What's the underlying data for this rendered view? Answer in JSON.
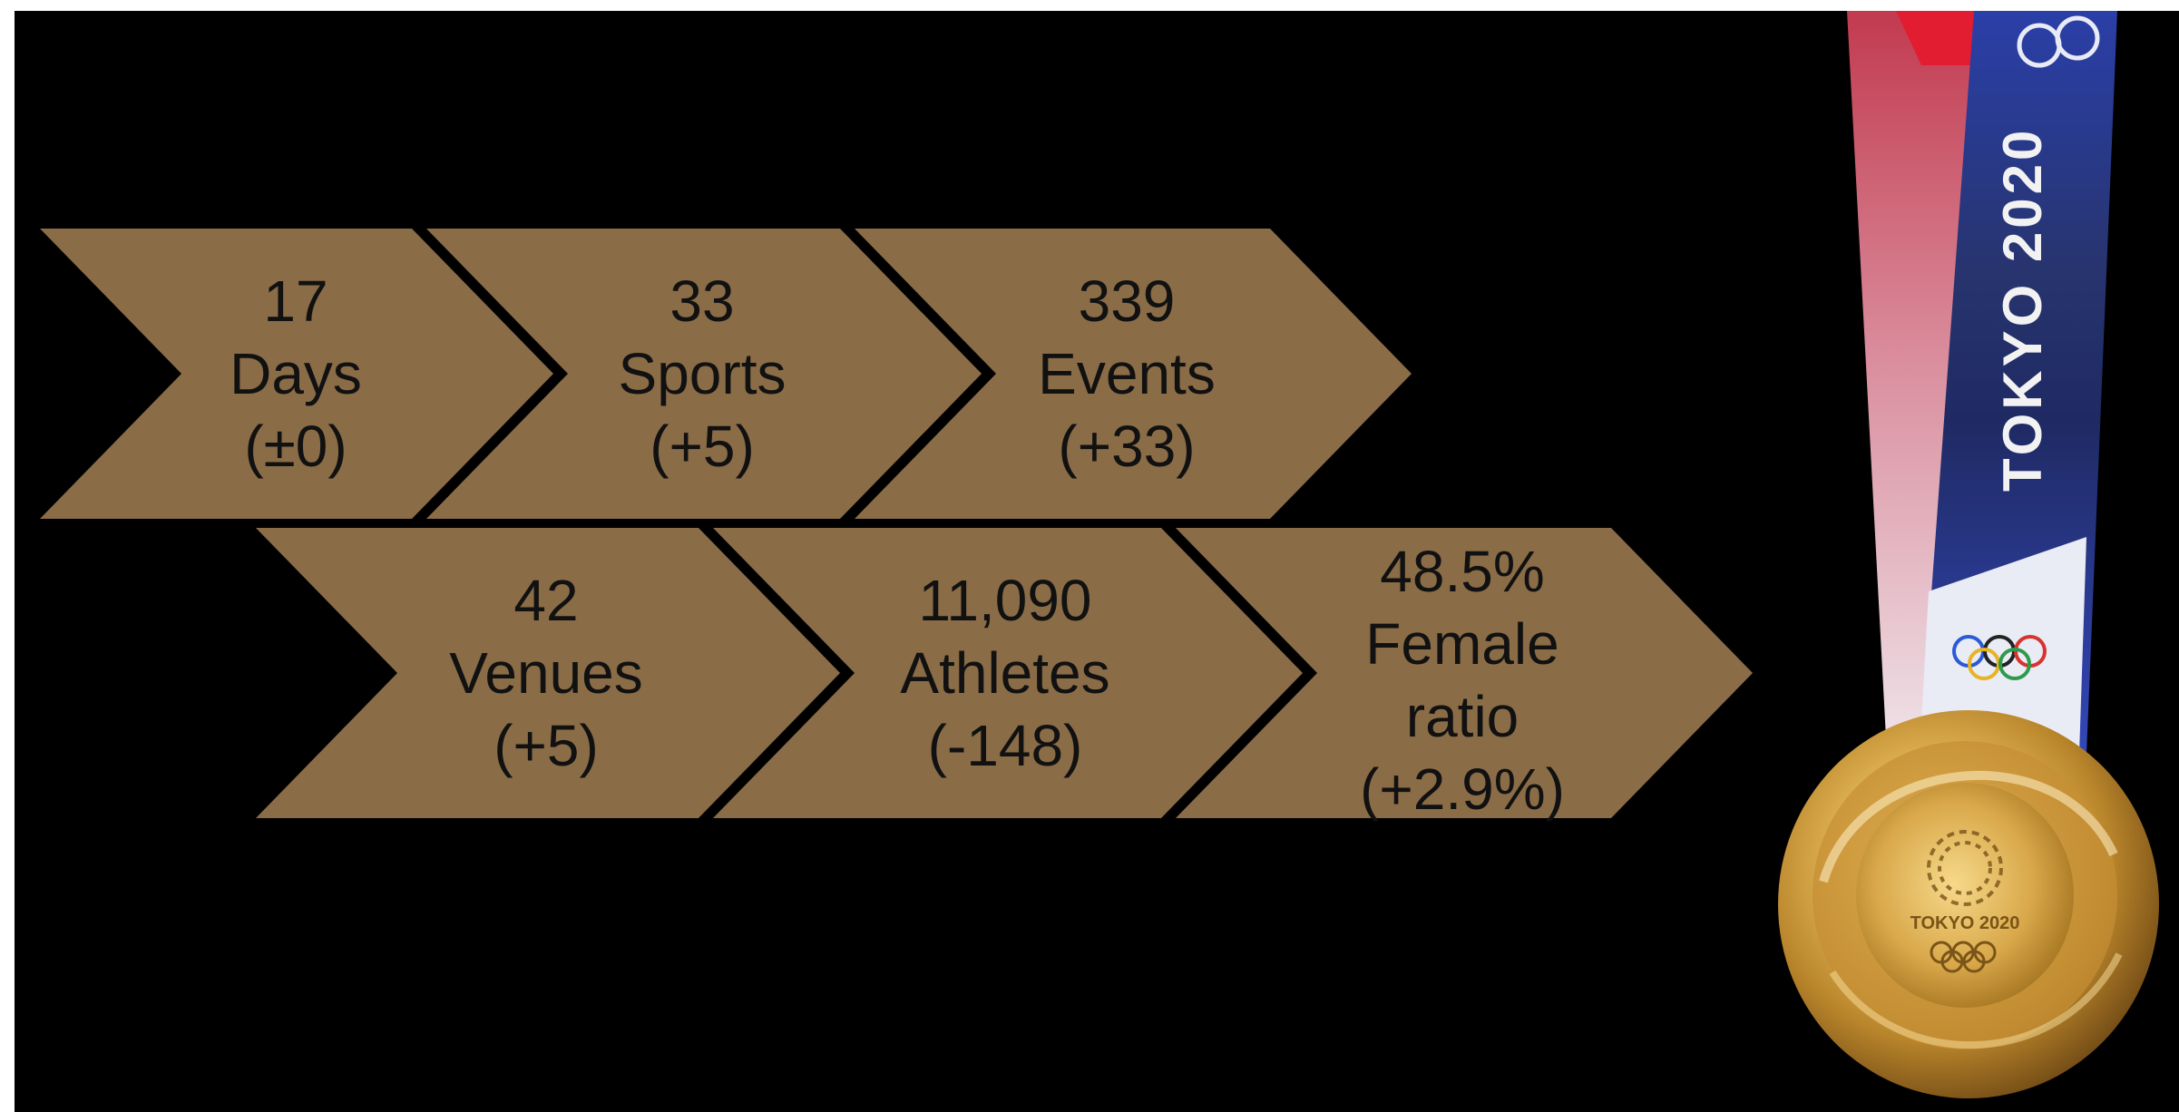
{
  "stats": [
    {
      "value": "17",
      "label": "Days",
      "change": "(±0)"
    },
    {
      "value": "33",
      "label": "Sports",
      "change": "(+5)"
    },
    {
      "value": "339",
      "label": "Events",
      "change": "(+33)"
    },
    {
      "value": "42",
      "label": "Venues",
      "change": "(+5)"
    },
    {
      "value": "11,090",
      "label": "Athletes",
      "change": "(-148)"
    },
    {
      "value": "48.5%",
      "label": "Female",
      "label2": "ratio",
      "change": "(+2.9%)"
    }
  ],
  "medal": {
    "ribbon_text": "TOKYO 2020",
    "medal_text": "TOKYO 2020"
  },
  "colors": {
    "chevron": "#8a6c47",
    "background": "#000000",
    "text": "#111111"
  }
}
